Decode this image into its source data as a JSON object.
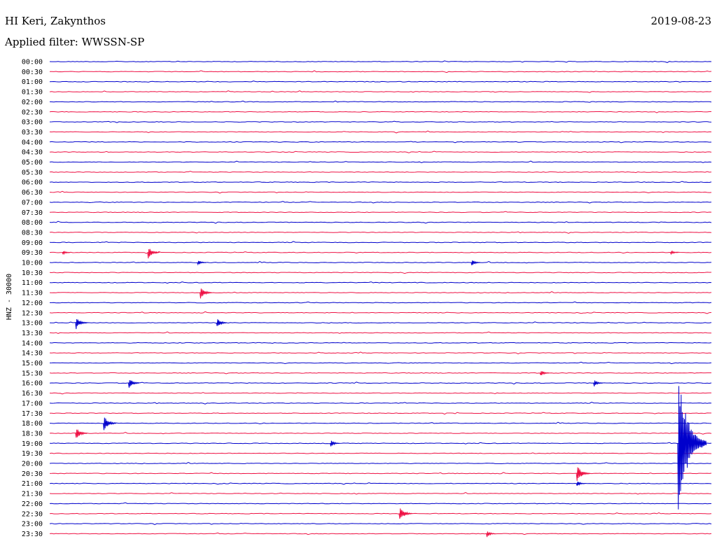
{
  "header": {
    "station": "HI Keri, Zakynthos",
    "date": "2019-08-23",
    "filter": "Applied filter: WWSSN-SP"
  },
  "chart_data": {
    "type": "line",
    "title": "HI Keri, Zakynthos",
    "ylabel": "HNZ - 30000",
    "trace_colors": [
      "#0000cc",
      "#ee1144"
    ],
    "rows": [
      "00:00",
      "00:30",
      "01:00",
      "01:30",
      "02:00",
      "02:30",
      "03:00",
      "03:30",
      "04:00",
      "04:30",
      "05:00",
      "05:30",
      "06:00",
      "06:30",
      "07:00",
      "07:30",
      "08:00",
      "08:30",
      "09:00",
      "09:30",
      "10:00",
      "10:30",
      "11:00",
      "11:30",
      "12:00",
      "12:30",
      "13:00",
      "13:30",
      "14:00",
      "14:30",
      "15:00",
      "15:30",
      "16:00",
      "16:30",
      "17:00",
      "17:30",
      "18:00",
      "18:30",
      "19:00",
      "19:30",
      "20:00",
      "20:30",
      "21:00",
      "21:30",
      "22:00",
      "22:30",
      "23:00",
      "23:30"
    ],
    "events": [
      {
        "row": 19,
        "t": 0.149,
        "amp": 9
      },
      {
        "row": 19,
        "t": 0.02,
        "amp": 3
      },
      {
        "row": 19,
        "t": 0.939,
        "amp": 3
      },
      {
        "row": 20,
        "t": 0.224,
        "amp": 4
      },
      {
        "row": 20,
        "t": 0.638,
        "amp": 5
      },
      {
        "row": 23,
        "t": 0.228,
        "amp": 9
      },
      {
        "row": 26,
        "t": 0.04,
        "amp": 9
      },
      {
        "row": 26,
        "t": 0.253,
        "amp": 7
      },
      {
        "row": 31,
        "t": 0.742,
        "amp": 5
      },
      {
        "row": 32,
        "t": 0.12,
        "amp": 8
      },
      {
        "row": 32,
        "t": 0.823,
        "amp": 5
      },
      {
        "row": 36,
        "t": 0.082,
        "amp": 11
      },
      {
        "row": 37,
        "t": 0.04,
        "amp": 9
      },
      {
        "row": 38,
        "t": 0.425,
        "amp": 5
      },
      {
        "row": 38,
        "t": 0.95,
        "amp": 105
      },
      {
        "row": 41,
        "t": 0.797,
        "amp": 12
      },
      {
        "row": 42,
        "t": 0.797,
        "amp": 4
      },
      {
        "row": 45,
        "t": 0.529,
        "amp": 11
      },
      {
        "row": 47,
        "t": 0.661,
        "amp": 5
      }
    ]
  }
}
